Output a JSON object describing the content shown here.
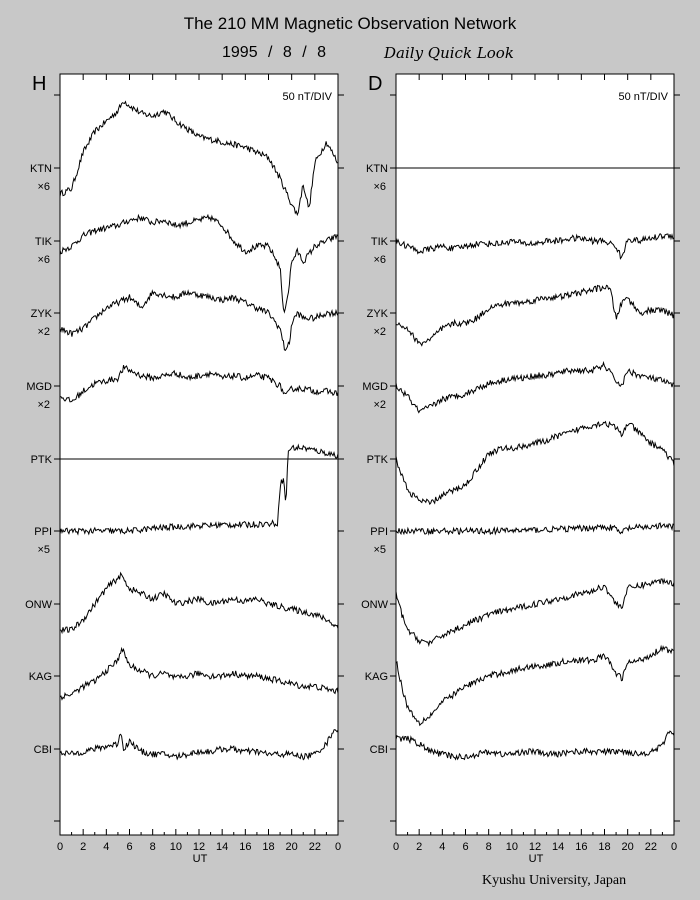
{
  "title": "The 210 MM Magnetic Observation Network",
  "date": "1995 / 8 / 8",
  "subtitle": "Daily Quick Look",
  "footer": "Kyushu University, Japan",
  "chart_data": [
    {
      "type": "line",
      "panel_label": "H",
      "scale_label": "50 nT/DIV",
      "xlabel": "UT",
      "x_ticks": [
        "0",
        "2",
        "4",
        "6",
        "8",
        "10",
        "12",
        "14",
        "16",
        "18",
        "20",
        "22",
        "0"
      ],
      "xlim": [
        0,
        24
      ],
      "grid": false,
      "stations": [
        {
          "name": "KTN",
          "multiplier": "×6"
        },
        {
          "name": "TIK",
          "multiplier": "×6"
        },
        {
          "name": "ZYK",
          "multiplier": "×2"
        },
        {
          "name": "MGD",
          "multiplier": "×2"
        },
        {
          "name": "PTK",
          "multiplier": ""
        },
        {
          "name": "PPI",
          "multiplier": "×5"
        },
        {
          "name": "ONW",
          "multiplier": ""
        },
        {
          "name": "KAG",
          "multiplier": ""
        },
        {
          "name": "CBI",
          "multiplier": ""
        }
      ],
      "series": [
        {
          "name": "KTN",
          "x": [
            0,
            1,
            2,
            3,
            4,
            5,
            5.5,
            6,
            7,
            8,
            9,
            10,
            11,
            12,
            14,
            16,
            18,
            19,
            20,
            20.5,
            21,
            21.5,
            22,
            23,
            24
          ],
          "y": [
            -0.5,
            -0.4,
            0.3,
            0.7,
            0.9,
            1.1,
            1.3,
            1.2,
            1.05,
            1.0,
            1.1,
            0.9,
            0.75,
            0.6,
            0.5,
            0.4,
            0.2,
            -0.2,
            -0.7,
            -0.9,
            -0.3,
            -0.8,
            0.1,
            0.5,
            0.1
          ]
        },
        {
          "name": "TIK",
          "x": [
            0,
            1,
            2,
            3,
            4,
            5,
            6,
            7,
            8,
            9,
            10,
            11,
            12,
            13,
            14,
            15,
            16,
            17,
            18,
            19,
            19.3,
            19.7,
            20,
            20.5,
            21,
            22,
            23,
            24
          ],
          "y": [
            -0.2,
            -0.1,
            0.1,
            0.2,
            0.25,
            0.3,
            0.4,
            0.45,
            0.35,
            0.4,
            0.3,
            0.35,
            0.4,
            0.45,
            0.3,
            0.0,
            -0.2,
            -0.1,
            -0.1,
            -0.5,
            -1.4,
            -1.0,
            -0.4,
            -0.2,
            -0.4,
            -0.1,
            0.0,
            0.1
          ]
        },
        {
          "name": "ZYK",
          "x": [
            0,
            1,
            2,
            3,
            4,
            5,
            6,
            7,
            8,
            9,
            10,
            11,
            12,
            13,
            14,
            15,
            16,
            17,
            18,
            19,
            19.4,
            19.8,
            20,
            20.5,
            21,
            22,
            23,
            24
          ],
          "y": [
            -0.3,
            -0.4,
            -0.3,
            -0.1,
            0.1,
            0.2,
            0.3,
            0.1,
            0.4,
            0.35,
            0.3,
            0.4,
            0.35,
            0.3,
            0.25,
            0.3,
            0.2,
            0.1,
            0.0,
            -0.3,
            -0.7,
            -0.6,
            -0.2,
            0.0,
            -0.1,
            -0.1,
            0.0,
            0.0
          ]
        },
        {
          "name": "MGD",
          "x": [
            0,
            1,
            2,
            3,
            4,
            5,
            5.5,
            6,
            7,
            8,
            9,
            10,
            11,
            12,
            13,
            14,
            15,
            16,
            17,
            18,
            19,
            19.5,
            20,
            21,
            22,
            23,
            24
          ],
          "y": [
            -0.2,
            -0.3,
            -0.1,
            0.05,
            0.1,
            0.15,
            0.35,
            0.3,
            0.2,
            0.15,
            0.2,
            0.25,
            0.15,
            0.2,
            0.25,
            0.15,
            0.2,
            0.15,
            0.2,
            0.15,
            0.0,
            -0.2,
            -0.05,
            -0.05,
            -0.1,
            -0.1,
            -0.15
          ]
        },
        {
          "name": "PTK",
          "x": [
            0,
            4,
            8,
            12,
            16,
            19,
            19.5,
            20,
            21,
            22,
            23,
            24
          ],
          "y": [
            0.0,
            0.0,
            0.0,
            0.0,
            0.0,
            0.0,
            0.0,
            0.0,
            0.0,
            0.0,
            0.0,
            0.0
          ]
        },
        {
          "name": "PPI",
          "x": [
            0,
            2,
            4,
            6,
            8,
            10,
            12,
            14,
            16,
            18,
            18.8,
            19.0,
            19.3,
            19.5,
            19.7,
            20,
            21,
            22,
            23,
            24
          ],
          "y": [
            0.0,
            0.0,
            0.0,
            0.0,
            0.05,
            0.08,
            0.1,
            0.12,
            0.12,
            0.14,
            0.15,
            0.9,
            1.0,
            0.5,
            1.55,
            1.6,
            1.6,
            1.55,
            1.5,
            1.45
          ]
        },
        {
          "name": "ONW",
          "x": [
            0,
            1,
            2,
            3,
            4,
            5,
            5.3,
            6,
            7,
            8,
            9,
            10,
            11,
            12,
            13,
            14,
            15,
            16,
            17,
            18,
            19,
            20,
            21,
            22,
            23,
            24
          ],
          "y": [
            -0.5,
            -0.5,
            -0.3,
            0.0,
            0.3,
            0.5,
            0.55,
            0.3,
            0.2,
            0.1,
            0.2,
            0.0,
            0.05,
            0.1,
            0.0,
            0.05,
            0.1,
            0.05,
            0.1,
            0.0,
            -0.05,
            -0.1,
            -0.15,
            -0.2,
            -0.3,
            -0.45
          ]
        },
        {
          "name": "KAG",
          "x": [
            0,
            1,
            2,
            3,
            4,
            5,
            5.3,
            6,
            7,
            8,
            9,
            10,
            11,
            12,
            13,
            14,
            15,
            16,
            17,
            18,
            19,
            20,
            21,
            22,
            23,
            24
          ],
          "y": [
            -0.4,
            -0.35,
            -0.2,
            -0.1,
            0.1,
            0.3,
            0.55,
            0.2,
            0.1,
            0.0,
            0.05,
            -0.05,
            0.0,
            0.05,
            0.0,
            0.0,
            0.05,
            0.0,
            0.0,
            -0.05,
            -0.1,
            -0.15,
            -0.2,
            -0.2,
            -0.25,
            -0.3
          ]
        },
        {
          "name": "CBI",
          "x": [
            0,
            1,
            2,
            3,
            4,
            5,
            5.2,
            5.5,
            6,
            7,
            8,
            9,
            10,
            11,
            12,
            13,
            14,
            15,
            16,
            17,
            18,
            19,
            20,
            21,
            22,
            23,
            23.7,
            24
          ],
          "y": [
            -0.05,
            -0.1,
            -0.05,
            0.0,
            0.05,
            0.1,
            0.35,
            0.0,
            0.15,
            -0.05,
            -0.1,
            -0.1,
            -0.15,
            -0.1,
            -0.05,
            -0.05,
            0.0,
            0.0,
            -0.05,
            -0.05,
            -0.1,
            -0.1,
            -0.1,
            -0.15,
            -0.1,
            0.1,
            0.4,
            0.35
          ]
        }
      ]
    },
    {
      "type": "line",
      "panel_label": "D",
      "scale_label": "50 nT/DIV",
      "xlabel": "UT",
      "x_ticks": [
        "0",
        "2",
        "4",
        "6",
        "8",
        "10",
        "12",
        "14",
        "16",
        "18",
        "20",
        "22",
        "0"
      ],
      "xlim": [
        0,
        24
      ],
      "grid": false,
      "stations": [
        {
          "name": "KTN",
          "multiplier": "×6"
        },
        {
          "name": "TIK",
          "multiplier": "×6"
        },
        {
          "name": "ZYK",
          "multiplier": "×2"
        },
        {
          "name": "MGD",
          "multiplier": "×2"
        },
        {
          "name": "PTK",
          "multiplier": ""
        },
        {
          "name": "PPI",
          "multiplier": "×5"
        },
        {
          "name": "ONW",
          "multiplier": ""
        },
        {
          "name": "KAG",
          "multiplier": ""
        },
        {
          "name": "CBI",
          "multiplier": ""
        }
      ],
      "series": [
        {
          "name": "KTN",
          "x": [
            0,
            6,
            12,
            18,
            24
          ],
          "y": [
            0.0,
            0.0,
            0.0,
            0.0,
            0.0
          ]
        },
        {
          "name": "TIK",
          "x": [
            0,
            1,
            2,
            3,
            4,
            5,
            6,
            7,
            8,
            9,
            10,
            11,
            12,
            13,
            14,
            15,
            16,
            17,
            18,
            19,
            19.5,
            20,
            21,
            22,
            23,
            24
          ],
          "y": [
            0.0,
            -0.1,
            -0.2,
            -0.15,
            -0.1,
            -0.15,
            -0.1,
            -0.05,
            -0.05,
            -0.05,
            0.0,
            -0.05,
            -0.05,
            0.0,
            0.0,
            0.05,
            0.05,
            0.0,
            0.0,
            -0.1,
            -0.35,
            0.05,
            0.0,
            0.05,
            0.1,
            0.1
          ]
        },
        {
          "name": "ZYK",
          "x": [
            0,
            1,
            2,
            3,
            4,
            5,
            6,
            7,
            8,
            9,
            10,
            11,
            12,
            13,
            14,
            15,
            16,
            17,
            18,
            18.5,
            19,
            19.5,
            20,
            21,
            22,
            23,
            24
          ],
          "y": [
            -0.2,
            -0.3,
            -0.6,
            -0.5,
            -0.3,
            -0.2,
            -0.2,
            -0.1,
            0.1,
            0.15,
            0.2,
            0.2,
            0.25,
            0.3,
            0.3,
            0.35,
            0.4,
            0.45,
            0.5,
            0.45,
            -0.1,
            0.2,
            0.3,
            0.0,
            0.05,
            0.05,
            -0.05
          ]
        },
        {
          "name": "MGD",
          "x": [
            0,
            1,
            2,
            3,
            4,
            5,
            6,
            7,
            8,
            9,
            10,
            11,
            12,
            13,
            14,
            15,
            16,
            17,
            18,
            19,
            19.5,
            20,
            21,
            22,
            23,
            24
          ],
          "y": [
            0.0,
            -0.2,
            -0.5,
            -0.4,
            -0.25,
            -0.2,
            -0.15,
            -0.05,
            0.05,
            0.1,
            0.15,
            0.15,
            0.2,
            0.2,
            0.25,
            0.3,
            0.3,
            0.3,
            0.4,
            0.1,
            0.0,
            0.3,
            0.2,
            0.15,
            0.1,
            0.0
          ]
        },
        {
          "name": "PTK",
          "x": [
            0,
            1,
            2,
            3,
            4,
            5,
            6,
            7,
            8,
            9,
            10,
            11,
            12,
            13,
            14,
            15,
            16,
            17,
            18,
            19,
            19.5,
            20,
            21,
            22,
            23,
            24
          ],
          "y": [
            0.0,
            -0.6,
            -0.8,
            -0.85,
            -0.7,
            -0.6,
            -0.5,
            -0.2,
            0.1,
            0.2,
            0.2,
            0.25,
            0.3,
            0.35,
            0.45,
            0.5,
            0.6,
            0.65,
            0.7,
            0.6,
            0.45,
            0.7,
            0.5,
            0.3,
            0.2,
            -0.1
          ]
        },
        {
          "name": "PPI",
          "x": [
            0,
            4,
            8,
            12,
            16,
            18,
            19,
            19.3,
            20,
            22,
            23,
            24
          ],
          "y": [
            0.0,
            0.0,
            0.0,
            0.02,
            0.05,
            0.08,
            0.05,
            -0.05,
            0.05,
            0.08,
            0.1,
            0.08
          ]
        },
        {
          "name": "ONW",
          "x": [
            0,
            0.5,
            1,
            2,
            3,
            4,
            5,
            6,
            7,
            8,
            9,
            10,
            11,
            12,
            13,
            14,
            15,
            16,
            17,
            18,
            19,
            19.5,
            20,
            21,
            22,
            23,
            24
          ],
          "y": [
            0.2,
            -0.2,
            -0.5,
            -0.7,
            -0.75,
            -0.6,
            -0.5,
            -0.4,
            -0.3,
            -0.2,
            -0.15,
            -0.1,
            -0.05,
            0.0,
            0.05,
            0.1,
            0.15,
            0.2,
            0.25,
            0.35,
            0.0,
            -0.05,
            0.3,
            0.35,
            0.4,
            0.45,
            0.4
          ]
        },
        {
          "name": "KAG",
          "x": [
            0,
            0.5,
            1,
            2,
            3,
            4,
            5,
            6,
            7,
            8,
            9,
            10,
            11,
            12,
            13,
            14,
            15,
            16,
            17,
            18,
            19,
            19.5,
            20,
            21,
            22,
            23,
            24
          ],
          "y": [
            0.3,
            -0.2,
            -0.6,
            -0.9,
            -0.75,
            -0.5,
            -0.35,
            -0.2,
            -0.1,
            0.0,
            0.05,
            0.1,
            0.15,
            0.2,
            0.2,
            0.25,
            0.3,
            0.3,
            0.3,
            0.4,
            0.05,
            -0.05,
            0.25,
            0.3,
            0.4,
            0.55,
            0.45
          ]
        },
        {
          "name": "CBI",
          "x": [
            0,
            1,
            2,
            3,
            4,
            5,
            6,
            7,
            8,
            9,
            10,
            11,
            12,
            13,
            14,
            15,
            16,
            17,
            18,
            19,
            20,
            21,
            22,
            23,
            23.5,
            24
          ],
          "y": [
            0.2,
            0.2,
            0.1,
            -0.05,
            -0.1,
            -0.15,
            -0.15,
            -0.1,
            -0.05,
            -0.1,
            -0.1,
            -0.05,
            -0.05,
            -0.1,
            -0.1,
            -0.05,
            -0.05,
            -0.05,
            -0.05,
            -0.05,
            -0.05,
            -0.1,
            -0.05,
            0.05,
            0.35,
            0.25
          ]
        }
      ]
    }
  ]
}
